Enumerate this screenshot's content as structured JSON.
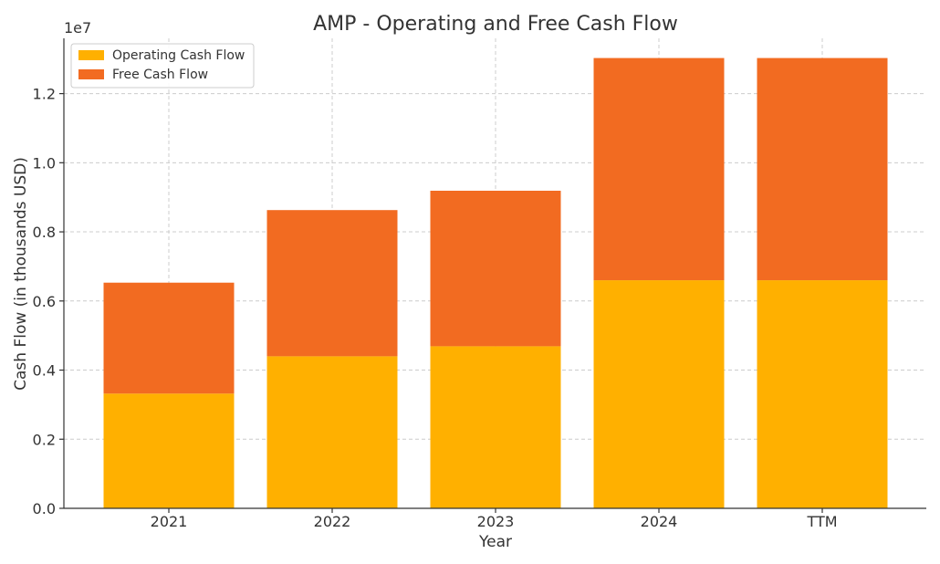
{
  "chart_data": {
    "type": "bar",
    "stacked": true,
    "title": "AMP - Operating and Free Cash Flow",
    "xlabel": "Year",
    "ylabel": "Cash Flow (in thousands USD)",
    "y_offset_label": "1e7",
    "categories": [
      "2021",
      "2022",
      "2023",
      "2024",
      "TTM"
    ],
    "series": [
      {
        "name": "Operating Cash Flow",
        "color": "#FFB000",
        "values": [
          3320000,
          4400000,
          4690000,
          6600000,
          6600000
        ]
      },
      {
        "name": "Free Cash Flow",
        "color": "#F26B21",
        "values": [
          3210000,
          4230000,
          4500000,
          6430000,
          6430000
        ]
      }
    ],
    "ylim": [
      0,
      13600000
    ],
    "yticks": [
      0,
      2000000,
      4000000,
      6000000,
      8000000,
      10000000,
      12000000
    ],
    "ytick_labels": [
      "0.0",
      "0.2",
      "0.4",
      "0.6",
      "0.8",
      "1.0",
      "1.2"
    ],
    "grid": true,
    "legend_position": "top-left"
  }
}
